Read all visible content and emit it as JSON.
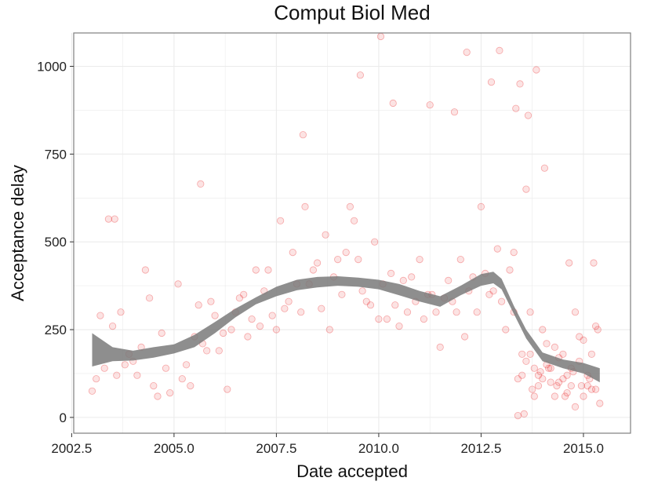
{
  "chart_data": {
    "type": "scatter",
    "title": "Comput Biol Med",
    "xlabel": "Date accepted",
    "ylabel": "Acceptance delay",
    "xlim": [
      2002.55,
      2016.15
    ],
    "ylim": [
      -45,
      1095
    ],
    "x_ticks": [
      2002.5,
      2005.0,
      2007.5,
      2010.0,
      2012.5,
      2015.0
    ],
    "x_tick_labels": [
      "2002.5",
      "2005.0",
      "2007.5",
      "2010.0",
      "2012.5",
      "2015.0"
    ],
    "y_ticks": [
      0,
      250,
      500,
      750,
      1000
    ],
    "y_tick_labels": [
      "0",
      "250",
      "500",
      "750",
      "1000"
    ],
    "grid": true,
    "colors": {
      "points": "#e8191c",
      "band": "#7a7a7a",
      "grid": "#ebebeb",
      "panel_border": "#7f7f7f"
    },
    "series": [
      {
        "kind": "points",
        "x": [
          2003.0,
          2003.2,
          2003.3,
          2003.5,
          2003.7,
          2003.9,
          2004.1,
          2004.3,
          2004.5,
          2004.7,
          2004.9,
          2005.1,
          2005.3,
          2005.5,
          2005.7,
          2005.9,
          2006.1,
          2006.3,
          2006.5,
          2006.7,
          2006.9,
          2007.1,
          2007.3,
          2007.5,
          2007.7,
          2007.9,
          2008.1,
          2008.3,
          2008.5,
          2008.7,
          2008.9,
          2009.1,
          2009.3,
          2009.5,
          2009.7,
          2009.9,
          2010.1,
          2010.3,
          2010.5,
          2010.7,
          2010.9,
          2011.1,
          2011.3,
          2011.5,
          2011.7,
          2011.9,
          2012.1,
          2012.3,
          2012.5,
          2012.7,
          2012.9,
          2013.1,
          2013.3,
          2013.5,
          2013.7,
          2013.9,
          2014.1,
          2014.3,
          2014.5,
          2014.7,
          2014.9,
          2015.1,
          2015.3,
          2003.4,
          2003.6,
          2004.0,
          2004.2,
          2004.4,
          2004.8,
          2005.2,
          2005.6,
          2006.0,
          2006.4,
          2006.8,
          2007.2,
          2007.6,
          2008.0,
          2008.4,
          2008.8,
          2009.2,
          2009.6,
          2010.0,
          2010.4,
          2010.8,
          2011.2,
          2011.6,
          2012.0,
          2012.4,
          2012.8,
          2013.2,
          2013.4,
          2013.6,
          2013.8,
          2014.0,
          2014.2,
          2014.4,
          2014.6,
          2014.8,
          2015.0,
          2015.2,
          2003.1,
          2003.8,
          2004.6,
          2005.4,
          2005.8,
          2006.2,
          2006.6,
          2007.0,
          2007.4,
          2007.8,
          2008.2,
          2008.6,
          2009.0,
          2009.4,
          2009.8,
          2010.2,
          2010.6,
          2011.0,
          2011.4,
          2011.8,
          2012.2,
          2012.6,
          2013.0,
          2013.3,
          2013.5,
          2013.7,
          2013.9,
          2014.1,
          2014.3,
          2014.5,
          2014.7,
          2014.9,
          2015.1,
          2015.3,
          2010.05,
          2012.15,
          2012.95,
          2009.55,
          2013.85,
          2012.75,
          2013.45,
          2011.25,
          2010.35,
          2008.15,
          2005.65,
          2003.55,
          2011.85,
          2013.65,
          2015.25,
          2013.35,
          2014.05,
          2014.65,
          2015.35,
          2013.55,
          2013.75,
          2013.95,
          2014.15,
          2014.35,
          2014.55,
          2014.75,
          2014.95,
          2015.15,
          2013.4,
          2013.6,
          2013.8,
          2014.0,
          2014.2,
          2014.4,
          2014.6,
          2014.8,
          2015.0,
          2015.2,
          2015.4
        ],
        "y": [
          75,
          290,
          140,
          260,
          300,
          180,
          120,
          420,
          90,
          240,
          70,
          380,
          150,
          230,
          210,
          330,
          190,
          80,
          300,
          350,
          280,
          260,
          420,
          250,
          310,
          470,
          300,
          380,
          440,
          520,
          400,
          350,
          600,
          450,
          330,
          500,
          380,
          410,
          260,
          300,
          330,
          280,
          350,
          200,
          390,
          300,
          230,
          400,
          600,
          350,
          480,
          250,
          300,
          120,
          180,
          90,
          150,
          200,
          110,
          140,
          230,
          90,
          260,
          565,
          120,
          160,
          200,
          340,
          140,
          110,
          320,
          290,
          250,
          230,
          360,
          560,
          380,
          420,
          250,
          470,
          360,
          280,
          320,
          400,
          350,
          340,
          450,
          300,
          360,
          420,
          110,
          650,
          140,
          250,
          100,
          170,
          120,
          300,
          220,
          80,
          110,
          150,
          60,
          90,
          190,
          240,
          340,
          420,
          290,
          330,
          600,
          310,
          450,
          560,
          320,
          280,
          390,
          450,
          300,
          330,
          360,
          410,
          330,
          470,
          180,
          300,
          120,
          210,
          60,
          180,
          90,
          160,
          120,
          80,
          1085,
          1040,
          1045,
          975,
          990,
          955,
          950,
          890,
          895,
          805,
          665,
          565,
          870,
          860,
          440,
          880,
          710,
          440,
          250,
          10,
          80,
          130,
          140,
          90,
          60,
          130,
          90,
          110,
          5,
          160,
          60,
          110,
          140,
          100,
          70,
          30,
          60,
          180,
          40
        ]
      },
      {
        "kind": "smooth_band",
        "x": [
          2003.0,
          2003.5,
          2004.0,
          2004.5,
          2005.0,
          2005.5,
          2006.0,
          2006.5,
          2007.0,
          2007.5,
          2008.0,
          2008.5,
          2009.0,
          2009.5,
          2010.0,
          2010.5,
          2011.0,
          2011.5,
          2012.0,
          2012.5,
          2012.8,
          2013.0,
          2013.3,
          2013.6,
          2014.0,
          2014.5,
          2015.0,
          2015.4
        ],
        "lower": [
          145,
          160,
          162,
          170,
          182,
          200,
          240,
          285,
          322,
          345,
          362,
          370,
          375,
          372,
          365,
          348,
          330,
          315,
          348,
          375,
          382,
          365,
          295,
          225,
          160,
          140,
          125,
          100
        ],
        "upper": [
          240,
          200,
          190,
          200,
          208,
          235,
          272,
          310,
          342,
          372,
          392,
          400,
          402,
          398,
          392,
          380,
          360,
          345,
          375,
          408,
          415,
          395,
          318,
          250,
          185,
          165,
          155,
          140
        ]
      }
    ]
  }
}
